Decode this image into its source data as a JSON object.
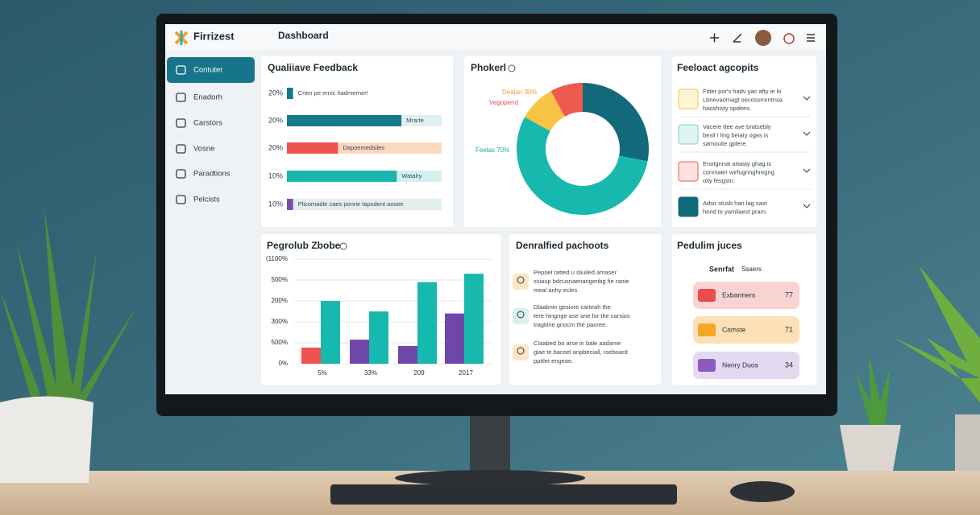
{
  "app": {
    "brand": "Firrizest",
    "page_title": "Dashboard"
  },
  "sidebar": [
    "Contuter",
    "Enadorh",
    "Carstors",
    "Vosne",
    "Paradtions",
    "Pelcists"
  ],
  "qualitative": {
    "title": "Qualiiave Feedback",
    "rows": [
      {
        "label": "20%",
        "text": "Crien pe ernic hadmerner!",
        "fill": 4,
        "color": "#137a8a"
      },
      {
        "label": "20%",
        "text": "Mrarte",
        "fill": 74,
        "color": "#137a8a"
      },
      {
        "label": "20%",
        "text": "Dapoemedsiles",
        "fill": 33,
        "color": "#ef5350"
      },
      {
        "label": "10%",
        "text": "Watalry",
        "fill": 71,
        "color": "#1bb5ad"
      },
      {
        "label": "10%",
        "text": "Plicomadie caes ponrie tapsdent aosee",
        "fill": 4,
        "color": "#7b4fa8"
      }
    ]
  },
  "donut": {
    "title": "Phokerl",
    "values": [
      28,
      55,
      9,
      8
    ],
    "colors": [
      "#12697a",
      "#17b8ae",
      "#f6c344",
      "#ee5a4f"
    ],
    "annotations": [
      "Dealan 30%",
      "Vegopend",
      "Feelas 70%"
    ]
  },
  "insights": {
    "title": "Feeloact agcopits",
    "items": [
      [
        "Fitter por's hadv yac afty ie lo",
        "Lbnevaomagt oecossrrentrsia",
        "haoshisty spdees."
      ],
      [
        "Vacere ttee ave bratsebly",
        "besit l ling beiaty oges is",
        "samouite gplere."
      ],
      [
        "Enotgnnat artaiay  ghag is",
        "conmaier wirfugnnghregng",
        "oity fesgstn."
      ],
      [
        "Adsir stusb han lag sast",
        "hend te yamilaest pram."
      ]
    ]
  },
  "progress": {
    "type": "bar",
    "title": "Pegrolub Zbobe",
    "categories": [
      "5%",
      "33%",
      "209",
      "2017"
    ],
    "series": [
      {
        "color": "#ef5350",
        "values": [
          0.77,
          null,
          null,
          null
        ]
      },
      {
        "color": "#6e47a8",
        "values": [
          null,
          1.15,
          0.85,
          2.4
        ]
      },
      {
        "color": "#17b8ae",
        "values": [
          3.0,
          2.5,
          3.9,
          4.3
        ]
      }
    ],
    "ylim": [
      0,
      5
    ],
    "yticks": [
      {
        "value": 0,
        "label": "0%"
      },
      {
        "value": 1,
        "label": "500%"
      },
      {
        "value": 2,
        "label": "300%"
      },
      {
        "value": 3,
        "label": "200%"
      },
      {
        "value": 4,
        "label": "500%"
      },
      {
        "value": 5,
        "label": "(1100%"
      }
    ],
    "grid": true
  },
  "detailed": {
    "title": "Denralfied pachoots",
    "items": [
      [
        "Pepoel ratted u sliuiled amaser",
        "ssiaup bdcusnaenangeribg fie ranie",
        "meal anhy ecles."
      ],
      [
        "Dlaabnin gesiore carteah the",
        "tere hingnge ase ane for the carsios",
        "tragtiine gnocm the paoree."
      ],
      [
        "Claabed bo arse in bale aadame",
        "glae te bansel anpbeciall, roeboard",
        "ppitlet engeae."
      ]
    ]
  },
  "pedulim": {
    "title": "Pedulim juces",
    "subtitle": "Senrfat",
    "tag": "Ssaers",
    "items": [
      {
        "label": "Exbarmers",
        "value": 77,
        "bg": "#f9d3d1",
        "icon": "#e84c4c"
      },
      {
        "label": "Camste",
        "value": 71,
        "bg": "#fde0b8",
        "icon": "#f5a623"
      },
      {
        "label": "Nenry Duos",
        "value": 34,
        "bg": "#e3d9f0",
        "icon": "#8c5bbf"
      }
    ]
  }
}
